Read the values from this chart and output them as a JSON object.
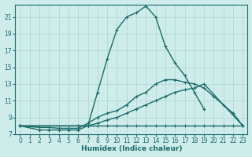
{
  "background_color": "#ceecea",
  "line_color": "#1a6b6b",
  "grid_color": "#aed4d0",
  "xlabel": "Humidex (Indice chaleur)",
  "xlim": [
    -0.5,
    23.5
  ],
  "ylim": [
    7,
    22.5
  ],
  "yticks": [
    7,
    9,
    11,
    13,
    15,
    17,
    19,
    21
  ],
  "xticks": [
    0,
    1,
    2,
    3,
    4,
    5,
    6,
    7,
    8,
    9,
    10,
    11,
    12,
    13,
    14,
    15,
    16,
    17,
    18,
    19,
    20,
    21,
    22,
    23
  ],
  "series": [
    {
      "x": [
        0,
        2,
        3,
        4,
        5,
        6,
        7,
        8,
        9,
        10,
        11,
        12,
        13,
        14,
        15,
        16,
        17,
        18,
        19,
        20,
        21,
        22,
        23
      ],
      "y": [
        8.0,
        7.5,
        7.5,
        7.5,
        7.5,
        7.5,
        8.0,
        12.0,
        16.0,
        19.5,
        21.0,
        21.5,
        22.3,
        21.0,
        17.5,
        15.5,
        14.0,
        12.0,
        10.0,
        null,
        null,
        null,
        null
      ]
    },
    {
      "x": [
        0,
        2,
        3,
        4,
        5,
        6,
        7,
        8,
        9,
        10,
        11,
        12,
        13,
        14,
        15,
        16,
        17,
        18,
        19,
        20,
        21,
        22,
        23
      ],
      "y": [
        8.0,
        7.8,
        7.8,
        7.7,
        7.7,
        7.7,
        8.3,
        9.0,
        9.5,
        9.8,
        10.5,
        11.5,
        12.0,
        13.0,
        13.5,
        13.5,
        13.2,
        13.0,
        12.5,
        11.5,
        10.5,
        9.5,
        8.0
      ]
    },
    {
      "x": [
        0,
        6,
        7,
        8,
        9,
        10,
        11,
        12,
        13,
        14,
        15,
        16,
        17,
        18,
        19,
        23
      ],
      "y": [
        8.0,
        8.0,
        8.0,
        8.3,
        8.7,
        9.0,
        9.5,
        10.0,
        10.5,
        11.0,
        11.5,
        12.0,
        12.3,
        12.5,
        13.0,
        8.0
      ]
    },
    {
      "x": [
        0,
        6,
        7,
        8,
        9,
        10,
        11,
        12,
        13,
        14,
        15,
        16,
        17,
        18,
        19,
        20,
        21,
        22,
        23
      ],
      "y": [
        8.0,
        8.0,
        8.0,
        8.0,
        8.0,
        8.0,
        8.0,
        8.0,
        8.0,
        8.0,
        8.0,
        8.0,
        8.0,
        8.0,
        8.0,
        8.0,
        8.0,
        8.0,
        8.0
      ]
    }
  ],
  "axis_fontsize": 6.5,
  "tick_fontsize": 5.5
}
